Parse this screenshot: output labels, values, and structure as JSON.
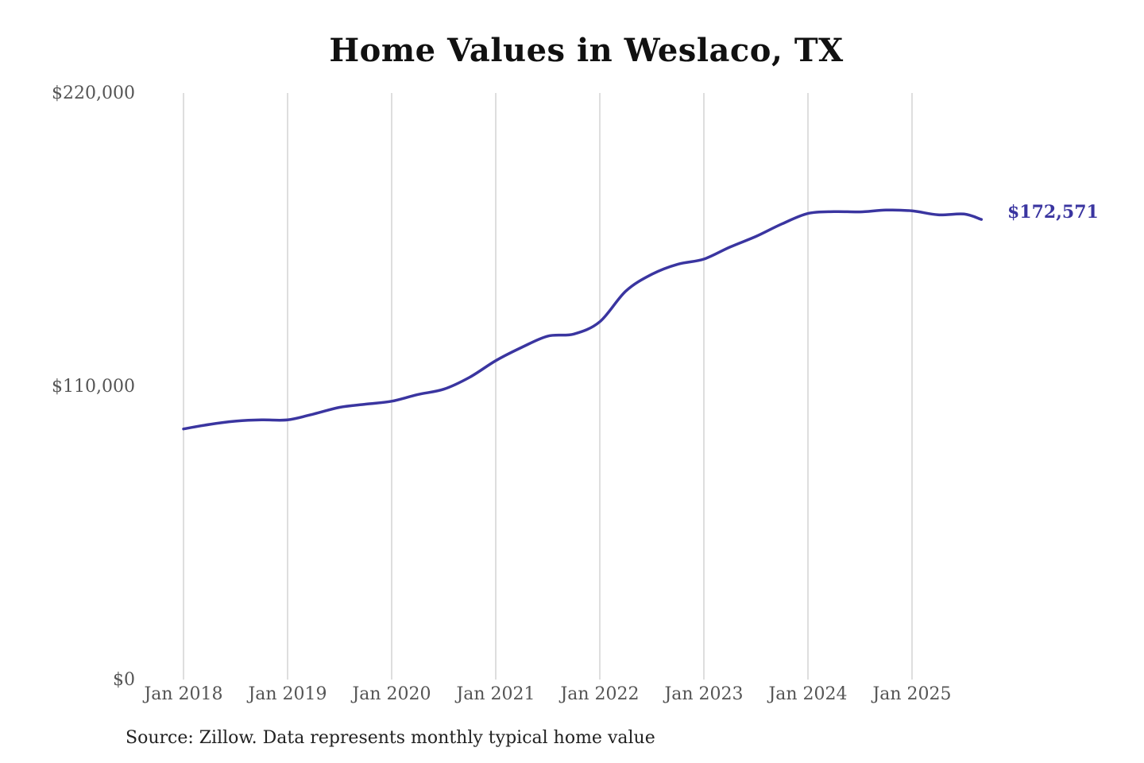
{
  "chart_data": {
    "type": "line",
    "title": "Home Values in Weslaco, TX",
    "source": "Source: Zillow. Data represents monthly typical home value",
    "xlabel": "",
    "ylabel": "",
    "x_tick_labels": [
      "Jan 2018",
      "Jan 2019",
      "Jan 2020",
      "Jan 2021",
      "Jan 2022",
      "Jan 2023",
      "Jan 2024",
      "Jan 2025"
    ],
    "y_tick_labels": [
      "$220,000",
      "$110,000",
      "$0"
    ],
    "y_ticks": [
      220000,
      110000,
      0
    ],
    "ylim": [
      0,
      220000
    ],
    "xlim": [
      "2018-01",
      "2025-09"
    ],
    "grid": "vertical lines at January of each year",
    "colors": {
      "line": "#3a35a0",
      "grid": "#c8c8c8",
      "tick_text": "#555555",
      "end_label": "#3a35a0"
    },
    "end_label": "$172,571",
    "series": [
      {
        "x": [
          "2018-01",
          "2018-04",
          "2018-07",
          "2018-10",
          "2019-01",
          "2019-04",
          "2019-07",
          "2019-10",
          "2020-01",
          "2020-04",
          "2020-07",
          "2020-10",
          "2021-01",
          "2021-04",
          "2021-07",
          "2021-10",
          "2022-01",
          "2022-04",
          "2022-07",
          "2022-10",
          "2023-01",
          "2023-04",
          "2023-07",
          "2023-10",
          "2024-01",
          "2024-04",
          "2024-07",
          "2024-10",
          "2025-01",
          "2025-04",
          "2025-07",
          "2025-09"
        ],
        "values": [
          94000,
          95700,
          96900,
          97400,
          97400,
          99600,
          102100,
          103300,
          104400,
          106900,
          108900,
          113400,
          119600,
          124600,
          128800,
          129600,
          134200,
          145700,
          152000,
          155800,
          157700,
          162200,
          166200,
          170900,
          174800,
          175500,
          175400,
          176100,
          175800,
          174300,
          174600,
          172571
        ]
      }
    ]
  }
}
